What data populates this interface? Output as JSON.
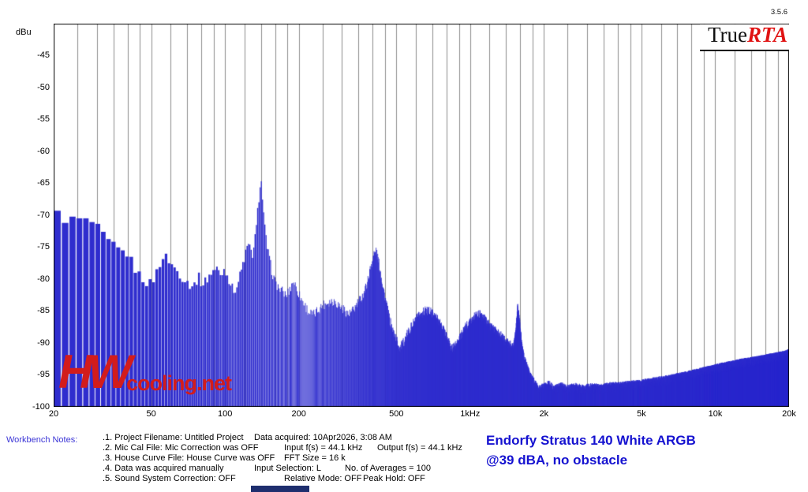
{
  "app": {
    "version": "3.5.6",
    "logo_true": "True",
    "logo_rta": "RTA"
  },
  "watermark": {
    "part1": "HW",
    "part2": "cooling.net",
    "color": "#d21c1c"
  },
  "notes": {
    "label": "Workbench Notes:",
    "rows": [
      {
        "c1": ".1. Project Filename: Untitled Project",
        "c2": "Data acquired: 10Apr2026, 3:08 AM"
      },
      {
        "c1": ".2. Mic Cal File: Mic Correction was OFF",
        "c2": "Input f(s) = 44.1 kHz",
        "c3": "Output f(s) = 44.1 kHz"
      },
      {
        "c1": ".3. House Curve File: House Curve was OFF",
        "c2": "FFT Size = 16 k"
      },
      {
        "c1": ".4. Data was acquired manually",
        "c2": "Input Selection: L",
        "c3": "No. of Averages = 100"
      },
      {
        "c1": ".5. Sound System Correction: OFF",
        "c2": "Relative Mode: OFF",
        "c3": "Peak Hold: OFF"
      }
    ]
  },
  "caption": {
    "line1": "Endorfy Stratus 140 White ARGB",
    "line2": "@39 dBA, no obstacle",
    "color": "#1512d0"
  },
  "chart_data": {
    "type": "bar",
    "description": "TrueRTA real-time audio spectrum of fan noise, narrow-band FFT bars on log frequency axis",
    "y_axis": {
      "unit": "dBu",
      "min": -100,
      "max": -40,
      "grid_step_db": 1,
      "tick_values": [
        -45,
        -50,
        -55,
        -60,
        -65,
        -70,
        -75,
        -80,
        -85,
        -90,
        -95,
        -100
      ],
      "tick_labels": [
        "-45",
        "-50",
        "-55",
        "-60",
        "-65",
        "-70",
        "-75",
        "-80",
        "-85",
        "-90",
        "-95",
        "-100"
      ]
    },
    "x_axis": {
      "unit": "Hz",
      "scale": "log",
      "min": 20,
      "max": 20000,
      "tick_values": [
        20,
        50,
        100,
        200,
        500,
        1000,
        2000,
        5000,
        10000,
        20000
      ],
      "tick_labels": [
        "20",
        "50",
        "100",
        "200",
        "500",
        "1kHz",
        "2k",
        "5k",
        "10k",
        "20k"
      ]
    },
    "grid_color": "#8e8e8e",
    "frame_color": "#000000",
    "bar_color": "#2f2dce",
    "bin_step_hz": 1.6,
    "noise_jitter_db": 0.8,
    "envelope_dbu_by_hz": [
      [
        20,
        -69
      ],
      [
        21,
        -70
      ],
      [
        23,
        -70.8
      ],
      [
        25,
        -70.6
      ],
      [
        27,
        -70.9
      ],
      [
        29,
        -71.2
      ],
      [
        31,
        -72.5
      ],
      [
        33,
        -74
      ],
      [
        35,
        -74.8
      ],
      [
        37,
        -75.5
      ],
      [
        40,
        -76
      ],
      [
        42,
        -77.5
      ],
      [
        44,
        -79
      ],
      [
        47,
        -80.2
      ],
      [
        50,
        -80.8
      ],
      [
        52,
        -79.5
      ],
      [
        55,
        -77
      ],
      [
        57,
        -76.4
      ],
      [
        59,
        -77
      ],
      [
        62,
        -78.2
      ],
      [
        65,
        -79
      ],
      [
        68,
        -80
      ],
      [
        72,
        -80.8
      ],
      [
        75,
        -81
      ],
      [
        78,
        -79.6
      ],
      [
        81,
        -80.8
      ],
      [
        84,
        -80.2
      ],
      [
        87,
        -79.2
      ],
      [
        90,
        -78.6
      ],
      [
        93,
        -78.4
      ],
      [
        96,
        -79.3
      ],
      [
        100,
        -78.4
      ],
      [
        104,
        -80
      ],
      [
        108,
        -81.8
      ],
      [
        112,
        -81.2
      ],
      [
        116,
        -79
      ],
      [
        120,
        -76.8
      ],
      [
        124,
        -74.6
      ],
      [
        127,
        -75.4
      ],
      [
        130,
        -76.2
      ],
      [
        134,
        -72.5
      ],
      [
        137,
        -68
      ],
      [
        140,
        -64
      ],
      [
        142,
        -66.5
      ],
      [
        145,
        -71.5
      ],
      [
        148,
        -74.5
      ],
      [
        152,
        -77
      ],
      [
        156,
        -79
      ],
      [
        160,
        -80.4
      ],
      [
        166,
        -81.4
      ],
      [
        172,
        -82
      ],
      [
        178,
        -82.6
      ],
      [
        184,
        -81.6
      ],
      [
        190,
        -80.2
      ],
      [
        196,
        -81.4
      ],
      [
        202,
        -82.6
      ],
      [
        210,
        -83.8
      ],
      [
        220,
        -85.2
      ],
      [
        230,
        -85.6
      ],
      [
        240,
        -84.8
      ],
      [
        252,
        -84
      ],
      [
        264,
        -83.6
      ],
      [
        276,
        -83.4
      ],
      [
        290,
        -84
      ],
      [
        305,
        -84.8
      ],
      [
        320,
        -85.6
      ],
      [
        335,
        -84.8
      ],
      [
        350,
        -83.6
      ],
      [
        365,
        -82.6
      ],
      [
        380,
        -80.6
      ],
      [
        392,
        -78.2
      ],
      [
        405,
        -76
      ],
      [
        415,
        -75.7
      ],
      [
        428,
        -78.4
      ],
      [
        440,
        -81
      ],
      [
        455,
        -84
      ],
      [
        470,
        -86.5
      ],
      [
        485,
        -88.2
      ],
      [
        500,
        -89.4
      ],
      [
        515,
        -90.8
      ],
      [
        530,
        -90.2
      ],
      [
        545,
        -89.2
      ],
      [
        560,
        -88.2
      ],
      [
        580,
        -87.2
      ],
      [
        600,
        -86.4
      ],
      [
        625,
        -85.6
      ],
      [
        650,
        -85.1
      ],
      [
        680,
        -85
      ],
      [
        710,
        -85.6
      ],
      [
        745,
        -86.6
      ],
      [
        780,
        -88
      ],
      [
        815,
        -89.8
      ],
      [
        845,
        -91
      ],
      [
        880,
        -90.2
      ],
      [
        915,
        -89
      ],
      [
        955,
        -87.6
      ],
      [
        1000,
        -86.6
      ],
      [
        1045,
        -85.9
      ],
      [
        1090,
        -85.6
      ],
      [
        1140,
        -86.3
      ],
      [
        1200,
        -87.4
      ],
      [
        1260,
        -88.2
      ],
      [
        1320,
        -88.8
      ],
      [
        1390,
        -89.8
      ],
      [
        1450,
        -90.3
      ],
      [
        1500,
        -90.6
      ],
      [
        1530,
        -88.5
      ],
      [
        1560,
        -84.3
      ],
      [
        1590,
        -86.8
      ],
      [
        1620,
        -90.5
      ],
      [
        1660,
        -92.5
      ],
      [
        1710,
        -94
      ],
      [
        1760,
        -95.3
      ],
      [
        1820,
        -96.3
      ],
      [
        1900,
        -97.4
      ],
      [
        2000,
        -97
      ],
      [
        2100,
        -96.6
      ],
      [
        2200,
        -97.4
      ],
      [
        2350,
        -96.9
      ],
      [
        2500,
        -97.3
      ],
      [
        2700,
        -97
      ],
      [
        2900,
        -97.3
      ],
      [
        3100,
        -97
      ],
      [
        3400,
        -97.2
      ],
      [
        3700,
        -96.9
      ],
      [
        4000,
        -96.9
      ],
      [
        4400,
        -96.7
      ],
      [
        4800,
        -96.6
      ],
      [
        5200,
        -96.4
      ],
      [
        5700,
        -96.1
      ],
      [
        6200,
        -95.9
      ],
      [
        6800,
        -95.6
      ],
      [
        7400,
        -95.3
      ],
      [
        8000,
        -95
      ],
      [
        8800,
        -94.6
      ],
      [
        9600,
        -94.3
      ],
      [
        10500,
        -93.9
      ],
      [
        11500,
        -93.6
      ],
      [
        12500,
        -93.3
      ],
      [
        13500,
        -93.1
      ],
      [
        14500,
        -92.9
      ],
      [
        15500,
        -92.7
      ],
      [
        16500,
        -92.5
      ],
      [
        17500,
        -92.3
      ],
      [
        18500,
        -92.1
      ],
      [
        19200,
        -92
      ],
      [
        20000,
        -91.7
      ]
    ]
  }
}
